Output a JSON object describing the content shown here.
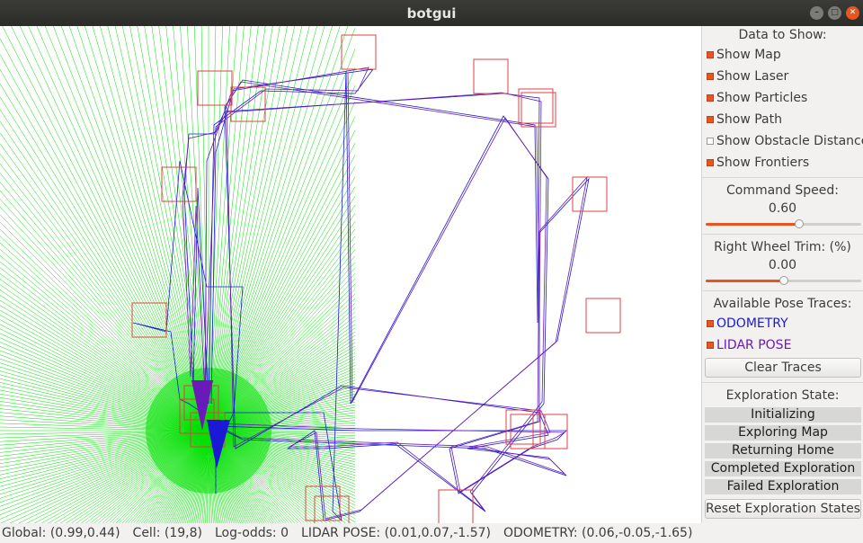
{
  "window": {
    "title": "botgui"
  },
  "panel": {
    "data_to_show_label": "Data to Show:",
    "checkboxes": [
      {
        "label": "Show Map",
        "checked": true
      },
      {
        "label": "Show Laser",
        "checked": true
      },
      {
        "label": "Show Particles",
        "checked": true
      },
      {
        "label": "Show Path",
        "checked": true
      },
      {
        "label": "Show Obstacle Distances",
        "checked": false
      },
      {
        "label": "Show Frontiers",
        "checked": true
      }
    ],
    "command_speed": {
      "label": "Command Speed:",
      "value": "0.60",
      "fraction": 0.6
    },
    "wheel_trim": {
      "label": "Right Wheel Trim: (%)",
      "value": "0.00",
      "fraction": 0.5
    },
    "pose_traces_label": "Available Pose Traces:",
    "pose_traces": [
      {
        "label": "ODOMETRY",
        "checked": true,
        "color": "#1a1ad6"
      },
      {
        "label": "LIDAR POSE",
        "checked": true,
        "color": "#6a1ab8"
      }
    ],
    "clear_traces": "Clear Traces",
    "exploration_label": "Exploration State:",
    "exploration_states": [
      "Initializing",
      "Exploring Map",
      "Returning Home",
      "Completed Exploration",
      "Failed Exploration"
    ],
    "reset_button": "Reset Exploration States"
  },
  "status": {
    "global": "Global: (0.99,0.44)",
    "cell": "Cell: (19,8)",
    "log_odds": "Log-odds: 0",
    "lidar_pose": "LIDAR POSE: (0.01,0.07,-1.57)",
    "odometry": "ODOMETRY: (0.06,-0.05,-1.65)"
  },
  "colors": {
    "laser": "#00e000",
    "frontier": "#e04040",
    "odometry": "#1a1ad6",
    "lidar_pose": "#6a1ab8",
    "accent": "#e9541f"
  },
  "icons": {
    "minimize": "minimize-icon",
    "maximize": "maximize-icon",
    "close": "close-icon"
  }
}
